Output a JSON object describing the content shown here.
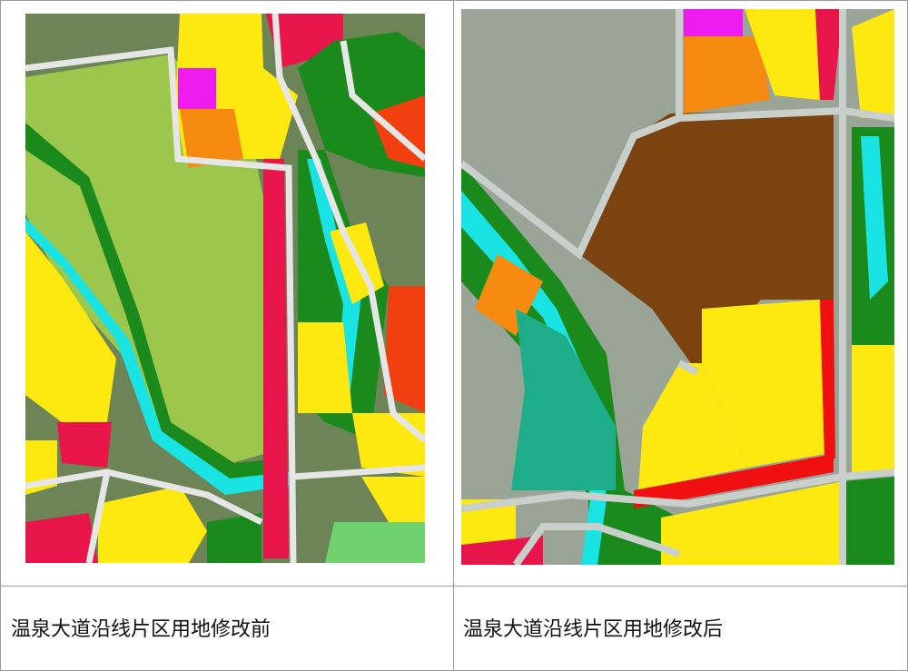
{
  "table": {
    "rows": [
      [
        "温泉大道沿线片区用地修改前",
        "温泉大道沿线片区用地修改后"
      ]
    ]
  }
}
